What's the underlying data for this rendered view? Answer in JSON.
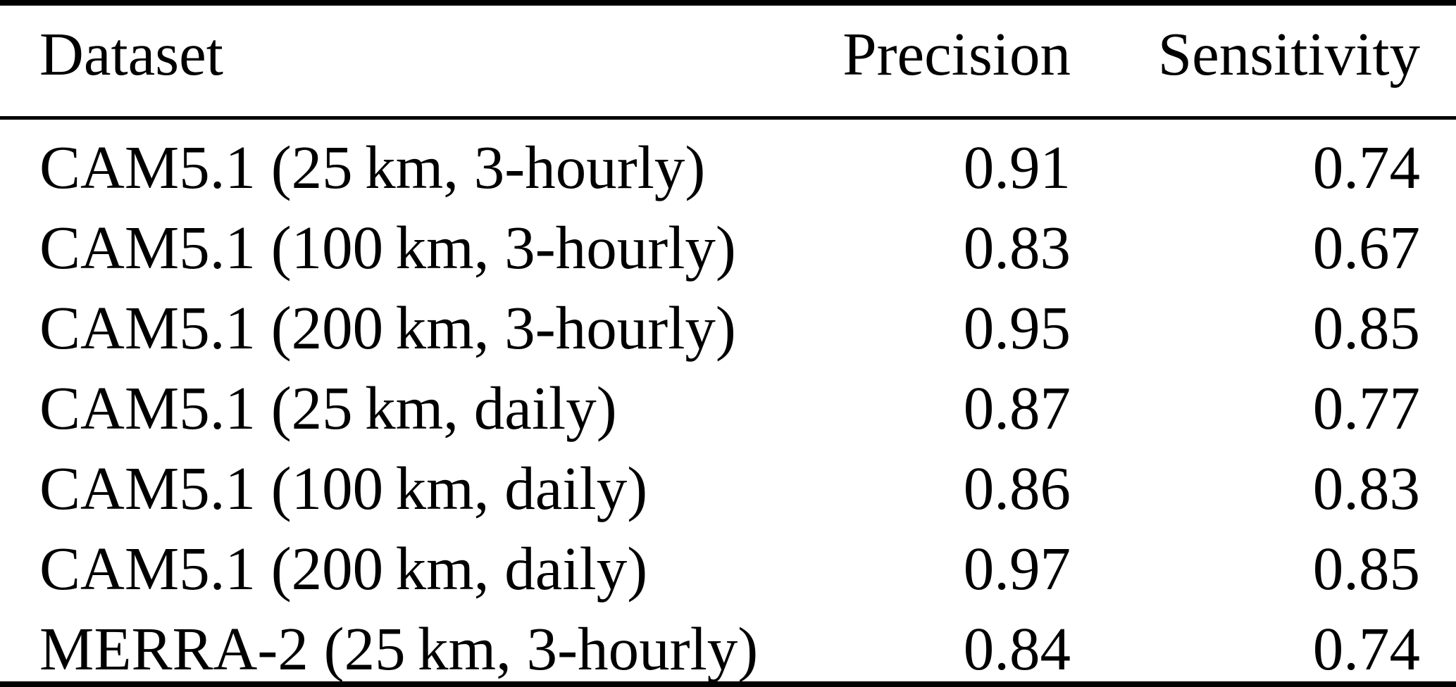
{
  "table": {
    "columns": [
      {
        "label": "Dataset",
        "align": "left"
      },
      {
        "label": "Precision",
        "align": "right"
      },
      {
        "label": "Sensitivity",
        "align": "right"
      }
    ],
    "rows": [
      {
        "dataset": "CAM5.1 (25 km, 3-hourly)",
        "precision": "0.91",
        "sensitivity": "0.74"
      },
      {
        "dataset": "CAM5.1 (100 km, 3-hourly)",
        "precision": "0.83",
        "sensitivity": "0.67"
      },
      {
        "dataset": "CAM5.1 (200 km, 3-hourly)",
        "precision": "0.95",
        "sensitivity": "0.85"
      },
      {
        "dataset": "CAM5.1 (25 km, daily)",
        "precision": "0.87",
        "sensitivity": "0.77"
      },
      {
        "dataset": "CAM5.1 (100 km, daily)",
        "precision": "0.86",
        "sensitivity": "0.83"
      },
      {
        "dataset": "CAM5.1 (200 km, daily)",
        "precision": "0.97",
        "sensitivity": "0.85"
      },
      {
        "dataset": "MERRA-2 (25 km, 3-hourly)",
        "precision": "0.84",
        "sensitivity": "0.74"
      }
    ],
    "colors": {
      "text": "#000000",
      "background": "#ffffff",
      "rule": "#000000"
    }
  },
  "chart_data": {
    "type": "table",
    "columns": [
      "Dataset",
      "Precision",
      "Sensitivity"
    ],
    "rows": [
      [
        "CAM5.1 (25 km, 3-hourly)",
        0.91,
        0.74
      ],
      [
        "CAM5.1 (100 km, 3-hourly)",
        0.83,
        0.67
      ],
      [
        "CAM5.1 (200 km, 3-hourly)",
        0.95,
        0.85
      ],
      [
        "CAM5.1 (25 km, daily)",
        0.87,
        0.77
      ],
      [
        "CAM5.1 (100 km, daily)",
        0.86,
        0.83
      ],
      [
        "CAM5.1 (200 km, daily)",
        0.97,
        0.85
      ],
      [
        "MERRA-2 (25 km, 3-hourly)",
        0.84,
        0.74
      ]
    ]
  }
}
